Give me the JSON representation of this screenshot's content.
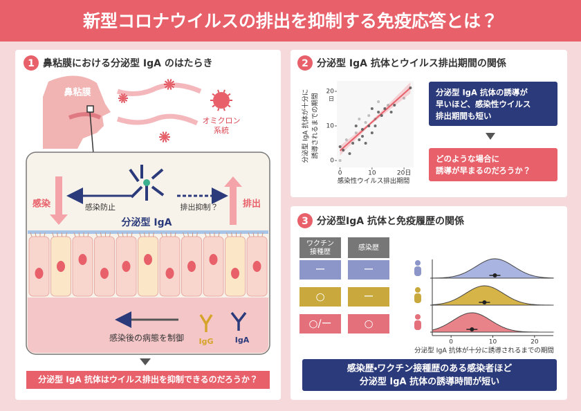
{
  "header": {
    "title": "新型コロナウイルスの排出を抑制する免疫応答とは？"
  },
  "panel1": {
    "number": "1",
    "title": "鼻粘膜における分泌型 IgA のはたらき",
    "nasal_mucosa": "鼻粘膜",
    "omicron": [
      "オミクロン",
      "系統"
    ],
    "infection": "感染",
    "prevention": "感染防止",
    "shedding_suppression": "排出抑制？",
    "shedding": "排出",
    "siga": "分泌型 IgA",
    "pathology": "感染後の病態を制御",
    "igg": "IgG",
    "iga": "IgA",
    "question": "分泌型 IgA 抗体はウイルス排出を抑制できるのだろうか？"
  },
  "panel2": {
    "number": "2",
    "title": "分泌型 IgA 抗体とウイルス排出期間の関係",
    "chart_data": {
      "type": "scatter",
      "y_label": [
        "分泌型 IgA 抗体が十分に",
        "誘導されるまでの期間"
      ],
      "x_label": "感染性ウイルス排出期間",
      "y_unit": "日",
      "xlim": [
        -1,
        23
      ],
      "ylim": [
        -2,
        23
      ],
      "xticks": [
        0,
        10,
        {
          "value": 20,
          "label": "20日"
        }
      ],
      "yticks": [
        0,
        10,
        20
      ],
      "x": [
        0,
        0,
        1,
        2,
        3,
        4,
        5,
        5,
        6,
        6,
        7,
        7,
        8,
        8,
        9,
        9,
        10,
        10,
        11,
        11,
        12,
        12,
        13,
        14,
        15,
        16,
        17,
        20,
        22
      ],
      "y": [
        0,
        4,
        3,
        6,
        2,
        5,
        8,
        10,
        6,
        12,
        7,
        9,
        11,
        5,
        10,
        13,
        8,
        15,
        12,
        10,
        14,
        17,
        13,
        15,
        16,
        14,
        16,
        18,
        21
      ],
      "color": "#555555",
      "fit_color": "#e8606a"
    },
    "finding": [
      "分泌型 IgA 抗体の誘導が",
      "早いほど、感染性ウイルス",
      "排出期間も短い"
    ],
    "question": [
      "どのような場合に",
      "誘導が早まるのだろうか？"
    ]
  },
  "panel3": {
    "number": "3",
    "title": "分泌型IgA 抗体と免疫履歴の関係",
    "table": {
      "headers": [
        [
          "ワクチン",
          "接種歴"
        ],
        [
          "感染歴"
        ]
      ],
      "rows": [
        [
          "ー",
          "ー"
        ],
        [
          "○",
          "ー"
        ],
        [
          "○/ー",
          "○"
        ]
      ]
    },
    "chart_data": {
      "type": "ridgeline",
      "x_label": "分泌型 IgA 抗体が十分に誘導されるまでの期間",
      "xlim": [
        -4.5,
        24.5
      ],
      "xticks": [
        0,
        10,
        20
      ],
      "values": [
        10.5,
        8,
        5
      ],
      "colors": [
        "#aab4e0",
        "#d6b448",
        "#e8838a"
      ]
    },
    "conclusion": [
      "感染歴・ワクチン接種歴のある感染者ほど",
      "分泌型 IgA 抗体の誘導時間が短い"
    ]
  }
}
